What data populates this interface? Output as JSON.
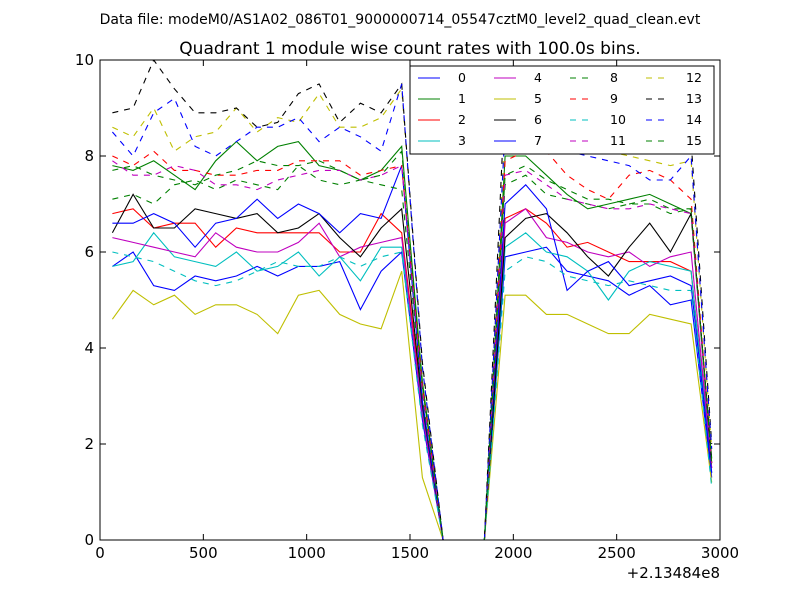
{
  "suptitle": "Data file: modeM0/AS1A02_086T01_9000000714_05547cztM0_level2_quad_clean.evt",
  "chart_data": {
    "type": "line",
    "title": "Quadrant 1 module wise count rates with 100.0s bins.",
    "xlabel": "",
    "ylabel": "",
    "xlim": [
      0,
      3000
    ],
    "ylim": [
      0,
      10
    ],
    "xticks": [
      0,
      500,
      1000,
      1500,
      2000,
      2500,
      3000
    ],
    "yticks": [
      0,
      2,
      4,
      6,
      8,
      10
    ],
    "x_offset_label": "+2.13484e8",
    "legend_position": "top-right",
    "x": [
      60,
      160,
      260,
      360,
      460,
      560,
      660,
      760,
      860,
      960,
      1060,
      1160,
      1260,
      1360,
      1460,
      1560,
      1660,
      1760,
      1860,
      1960,
      2060,
      2160,
      2260,
      2360,
      2460,
      2560,
      2660,
      2760,
      2860,
      2960
    ],
    "series": [
      {
        "name": "0",
        "color": "#0000ff",
        "dash": "solid",
        "values": [
          5.7,
          6.0,
          5.3,
          5.2,
          5.5,
          5.4,
          5.5,
          5.7,
          5.5,
          5.7,
          5.7,
          5.8,
          4.8,
          5.6,
          6.0,
          2.5,
          0,
          0,
          0,
          5.9,
          6.0,
          6.1,
          5.6,
          5.5,
          5.4,
          5.1,
          5.3,
          4.9,
          5.0,
          1.3
        ]
      },
      {
        "name": "1",
        "color": "#008000",
        "dash": "solid",
        "values": [
          7.8,
          7.7,
          7.9,
          7.6,
          7.3,
          7.9,
          8.3,
          7.9,
          8.2,
          8.3,
          7.8,
          7.7,
          7.5,
          7.7,
          8.2,
          3.3,
          0,
          0,
          0,
          8.0,
          8.0,
          7.6,
          7.2,
          6.9,
          7.0,
          7.1,
          7.2,
          7.0,
          6.8,
          1.7
        ]
      },
      {
        "name": "2",
        "color": "#ff0000",
        "dash": "solid",
        "values": [
          6.8,
          6.9,
          6.5,
          6.6,
          6.6,
          6.1,
          6.5,
          6.4,
          6.4,
          6.4,
          6.4,
          6.0,
          6.0,
          6.8,
          6.4,
          2.8,
          0,
          0,
          0,
          6.7,
          6.9,
          6.6,
          6.1,
          6.2,
          6.0,
          5.8,
          5.8,
          5.8,
          5.6,
          1.5
        ]
      },
      {
        "name": "3",
        "color": "#00bfbf",
        "dash": "solid",
        "values": [
          5.7,
          5.8,
          6.4,
          5.9,
          5.8,
          5.7,
          6.0,
          5.6,
          5.7,
          6.0,
          5.5,
          5.9,
          5.4,
          6.1,
          6.1,
          2.7,
          0,
          0,
          0,
          6.1,
          6.4,
          6.0,
          5.9,
          5.6,
          5.0,
          5.6,
          5.8,
          5.7,
          5.6,
          1.4
        ]
      },
      {
        "name": "4",
        "color": "#bf00bf",
        "dash": "solid",
        "values": [
          6.3,
          6.2,
          6.1,
          6.0,
          5.9,
          6.4,
          6.1,
          6.0,
          6.0,
          6.2,
          6.6,
          5.9,
          6.1,
          6.2,
          6.3,
          2.6,
          0,
          0,
          0,
          6.6,
          6.9,
          6.3,
          6.2,
          6.0,
          5.9,
          6.0,
          5.7,
          5.9,
          6.0,
          1.5
        ]
      },
      {
        "name": "5",
        "color": "#bfbf00",
        "dash": "solid",
        "values": [
          4.6,
          5.2,
          4.9,
          5.1,
          4.7,
          4.9,
          4.9,
          4.7,
          4.3,
          5.1,
          5.2,
          4.7,
          4.5,
          4.4,
          5.6,
          1.3,
          0,
          0,
          0,
          5.1,
          5.1,
          4.7,
          4.7,
          4.5,
          4.3,
          4.3,
          4.7,
          4.6,
          4.5,
          1.2
        ]
      },
      {
        "name": "6",
        "color": "#000000",
        "dash": "solid",
        "values": [
          6.4,
          7.2,
          6.5,
          6.5,
          6.9,
          6.8,
          6.7,
          6.8,
          6.4,
          6.5,
          6.8,
          6.3,
          5.9,
          6.5,
          6.9,
          2.8,
          0,
          0,
          0,
          6.3,
          6.7,
          6.8,
          6.4,
          5.9,
          5.5,
          6.1,
          6.6,
          6.0,
          6.8,
          1.6
        ]
      },
      {
        "name": "7",
        "color": "#0000ff",
        "dash": "solid",
        "values": [
          6.6,
          6.6,
          6.8,
          6.6,
          6.1,
          6.6,
          6.7,
          7.1,
          6.7,
          7.0,
          6.8,
          6.4,
          6.8,
          6.7,
          7.8,
          2.9,
          0,
          0,
          0,
          7.0,
          7.4,
          6.9,
          5.2,
          5.6,
          5.8,
          5.3,
          5.4,
          5.5,
          5.3,
          1.4
        ]
      },
      {
        "name": "8",
        "color": "#008000",
        "dash": "dashed",
        "values": [
          7.1,
          7.2,
          7.0,
          7.4,
          7.5,
          7.3,
          7.5,
          7.4,
          7.3,
          7.8,
          7.5,
          7.4,
          7.5,
          7.4,
          7.3,
          3.0,
          0,
          0,
          0,
          7.4,
          7.6,
          7.2,
          7.1,
          7.0,
          6.9,
          7.0,
          7.0,
          6.8,
          6.9,
          1.5
        ]
      },
      {
        "name": "9",
        "color": "#ff0000",
        "dash": "dashed",
        "values": [
          8.0,
          7.8,
          8.1,
          7.7,
          7.7,
          7.6,
          7.6,
          7.7,
          7.7,
          7.9,
          7.9,
          7.9,
          7.6,
          7.7,
          7.8,
          3.2,
          0,
          0,
          0,
          7.9,
          8.1,
          8.1,
          7.6,
          7.3,
          7.1,
          7.6,
          7.7,
          7.5,
          7.1,
          1.6
        ]
      },
      {
        "name": "10",
        "color": "#00bfbf",
        "dash": "dashed",
        "values": [
          6.0,
          5.9,
          5.8,
          5.6,
          5.4,
          5.3,
          5.4,
          5.6,
          5.8,
          5.7,
          5.7,
          5.9,
          5.7,
          5.9,
          6.0,
          2.4,
          0,
          0,
          0,
          5.6,
          5.9,
          5.8,
          5.5,
          5.4,
          5.3,
          5.4,
          5.3,
          5.2,
          5.2,
          1.1
        ]
      },
      {
        "name": "11",
        "color": "#bf00bf",
        "dash": "dashed",
        "values": [
          7.9,
          7.6,
          7.6,
          7.8,
          7.7,
          7.4,
          7.4,
          7.3,
          7.5,
          7.6,
          7.7,
          7.7,
          7.5,
          7.6,
          7.8,
          3.1,
          0,
          0,
          0,
          7.6,
          7.7,
          7.4,
          7.1,
          7.0,
          6.9,
          6.9,
          7.0,
          6.9,
          6.8,
          1.5
        ]
      },
      {
        "name": "12",
        "color": "#bfbf00",
        "dash": "dashed",
        "values": [
          8.6,
          8.4,
          9.0,
          8.1,
          8.4,
          8.5,
          9.0,
          8.5,
          8.8,
          8.7,
          9.3,
          8.6,
          8.6,
          8.8,
          9.4,
          3.6,
          0,
          0,
          0,
          8.6,
          8.8,
          8.5,
          8.4,
          8.4,
          8.1,
          8.0,
          7.9,
          7.8,
          7.9,
          1.9
        ]
      },
      {
        "name": "13",
        "color": "#000000",
        "dash": "dashed",
        "values": [
          8.9,
          9.0,
          10.0,
          9.4,
          8.9,
          8.9,
          9.0,
          8.6,
          8.7,
          9.3,
          9.5,
          8.7,
          9.1,
          8.9,
          9.5,
          3.7,
          0,
          0,
          0,
          9.3,
          9.4,
          9.1,
          8.8,
          8.6,
          8.4,
          8.3,
          8.2,
          8.1,
          8.3,
          2.0
        ]
      },
      {
        "name": "14",
        "color": "#0000ff",
        "dash": "dashed",
        "values": [
          8.5,
          8.0,
          8.9,
          9.2,
          8.2,
          8.0,
          8.3,
          8.6,
          8.6,
          8.8,
          8.3,
          8.6,
          8.4,
          8.1,
          9.5,
          3.6,
          0,
          0,
          0,
          8.6,
          8.4,
          8.3,
          8.1,
          8.0,
          7.9,
          7.8,
          7.5,
          7.5,
          8.0,
          1.9
        ]
      },
      {
        "name": "15",
        "color": "#008000",
        "dash": "dashed",
        "values": [
          7.7,
          7.8,
          7.6,
          7.5,
          7.4,
          7.6,
          7.7,
          7.9,
          7.8,
          7.8,
          7.9,
          7.7,
          7.5,
          7.6,
          8.1,
          3.2,
          0,
          0,
          0,
          7.6,
          7.8,
          7.5,
          7.3,
          7.1,
          7.1,
          7.0,
          7.1,
          6.9,
          6.9,
          1.6
        ]
      }
    ]
  }
}
